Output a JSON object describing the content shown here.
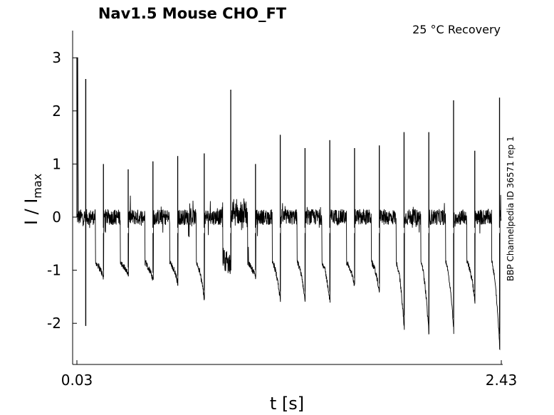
{
  "chart_data": {
    "type": "line",
    "title": "Nav1.5  Mouse  CHO_FT",
    "annotation": "25 °C  Recovery",
    "side_label": "BBP Channelpedia ID 36571 rep 1",
    "xlabel": "t [s]",
    "ylabel": {
      "main": "I / I",
      "sub": "max"
    },
    "xlim": [
      0.0,
      2.43
    ],
    "ylim": [
      -2.8,
      3.5
    ],
    "xticks": [
      0.03,
      2.43
    ],
    "xtick_labels": [
      "0.03",
      "2.43"
    ],
    "yticks": [
      3,
      2,
      1,
      0,
      -1,
      -2
    ],
    "ytick_labels": [
      "3",
      "2",
      "1",
      "0",
      "-1",
      "-2"
    ],
    "grid": false,
    "noise_band": 0.15,
    "series": [
      {
        "color": "#000000",
        "initial_pulse": {
          "t_start": 0.03,
          "t_peak": 0.035,
          "peak": 3.0,
          "t_end": 0.06
        },
        "initial_pulse_2": {
          "t": 0.08,
          "peak": 2.6,
          "trough": -2.05
        },
        "test_pulses": [
          {
            "t": 0.18,
            "peak": 1.0,
            "trough": -1.0
          },
          {
            "t": 0.32,
            "peak": 0.9,
            "trough": -0.95
          },
          {
            "t": 0.46,
            "peak": 1.05,
            "trough": -1.05
          },
          {
            "t": 0.6,
            "peak": 1.15,
            "trough": -1.1
          },
          {
            "t": 0.75,
            "peak": 1.2,
            "trough": -1.38
          },
          {
            "t": 0.9,
            "peak": 2.4,
            "trough": -0.85
          },
          {
            "t": 1.04,
            "peak": 1.0,
            "trough": -1.0
          },
          {
            "t": 1.18,
            "peak": 1.55,
            "trough": -1.4
          },
          {
            "t": 1.32,
            "peak": 1.3,
            "trough": -1.4
          },
          {
            "t": 1.46,
            "peak": 1.45,
            "trough": -1.4
          },
          {
            "t": 1.6,
            "peak": 1.3,
            "trough": -1.15
          },
          {
            "t": 1.74,
            "peak": 1.35,
            "trough": -1.25
          },
          {
            "t": 1.88,
            "peak": 1.6,
            "trough": -1.85
          },
          {
            "t": 2.02,
            "peak": 1.6,
            "trough": -2.0
          },
          {
            "t": 2.16,
            "peak": 2.2,
            "trough": -1.9
          },
          {
            "t": 2.28,
            "peak": 1.25,
            "trough": -1.4
          },
          {
            "t": 2.42,
            "peak": 2.25,
            "trough": -2.2
          }
        ]
      }
    ]
  }
}
